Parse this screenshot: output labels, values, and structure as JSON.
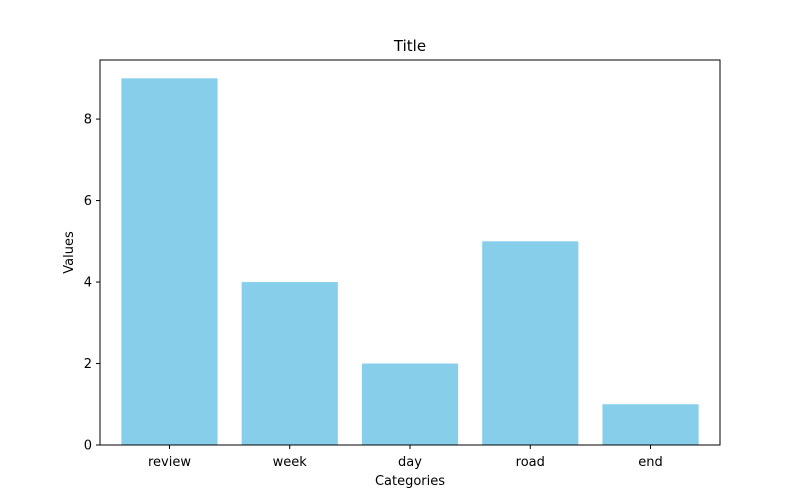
{
  "chart_data": {
    "type": "bar",
    "title": "Title",
    "xlabel": "Categories",
    "ylabel": "Values",
    "categories": [
      "review",
      "week",
      "day",
      "road",
      "end"
    ],
    "values": [
      9,
      4,
      2,
      5,
      1
    ],
    "ylim": [
      0,
      9.45
    ],
    "yticks": [
      0,
      2,
      4,
      6,
      8
    ],
    "bar_color": "#87CEEB",
    "grid": false,
    "legend": "none"
  }
}
